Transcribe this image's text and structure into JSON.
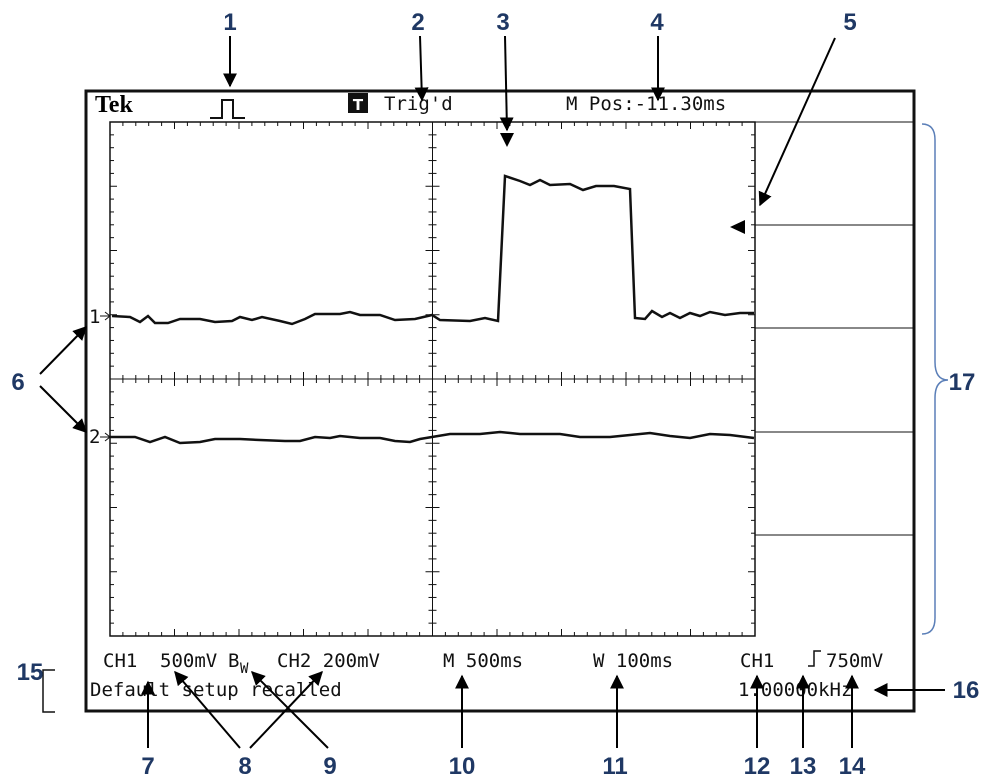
{
  "screen": {
    "header": {
      "brand": "Tek",
      "badge": "T",
      "trigger_status": "Trig'd",
      "position": "M Pos:-11.30ms"
    },
    "channel_markers": [
      "1",
      "2"
    ],
    "footer": {
      "ch1_label": "CH1",
      "ch1_scale": "500mV",
      "bandwidth": "B",
      "bandwidth_sub": "W",
      "ch2": "CH2 200mV",
      "main": "M 500ms",
      "window": "W 100ms",
      "trigger_source": "CH1",
      "trigger_level": "750mV",
      "message": "Default setup recalled",
      "frequency": "1.00000kHz"
    }
  },
  "callouts": [
    "1",
    "2",
    "3",
    "4",
    "5",
    "6",
    "7",
    "8",
    "9",
    "10",
    "11",
    "12",
    "13",
    "14",
    "15",
    "16",
    "17"
  ]
}
